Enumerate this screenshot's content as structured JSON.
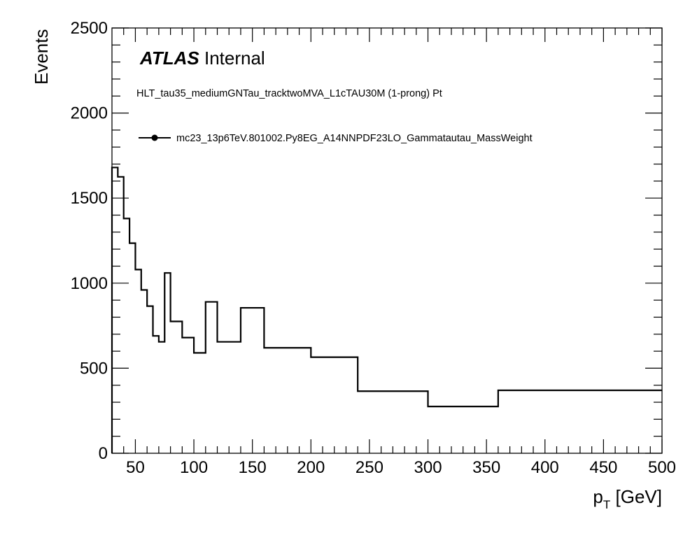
{
  "chart_data": {
    "type": "line",
    "style": "step-histogram",
    "title": "ATLAS Internal",
    "title_bold": "ATLAS",
    "title_rest": "Internal",
    "subtitle": "HLT_tau35_mediumGNTau_tracktwoMVA_L1cTAU30M (1-prong) Pt",
    "xlabel": "[GeV]",
    "xlabel_symbol": "p",
    "xlabel_subscript": "T",
    "ylabel": "Events",
    "xlim": [
      30,
      500
    ],
    "ylim": [
      0,
      2500
    ],
    "x_ticks": [
      50,
      100,
      150,
      200,
      250,
      300,
      350,
      400,
      450,
      500
    ],
    "y_ticks": [
      0,
      500,
      1000,
      1500,
      2000,
      2500
    ],
    "legend_position": "top-left",
    "grid": false,
    "series": [
      {
        "name": "mc23_13p6TeV.801002.Py8EG_A14NNPDF23LO_Gammatautau_MassWeight",
        "color": "#000000",
        "bin_edges": [
          30,
          35,
          40,
          45,
          50,
          55,
          60,
          65,
          70,
          75,
          80,
          90,
          100,
          110,
          120,
          140,
          160,
          200,
          240,
          300,
          360,
          420,
          500
        ],
        "values": [
          1680,
          1625,
          1380,
          1235,
          1080,
          960,
          865,
          690,
          655,
          1060,
          775,
          680,
          590,
          890,
          655,
          855,
          620,
          565,
          365,
          275,
          370,
          370
        ]
      }
    ]
  }
}
